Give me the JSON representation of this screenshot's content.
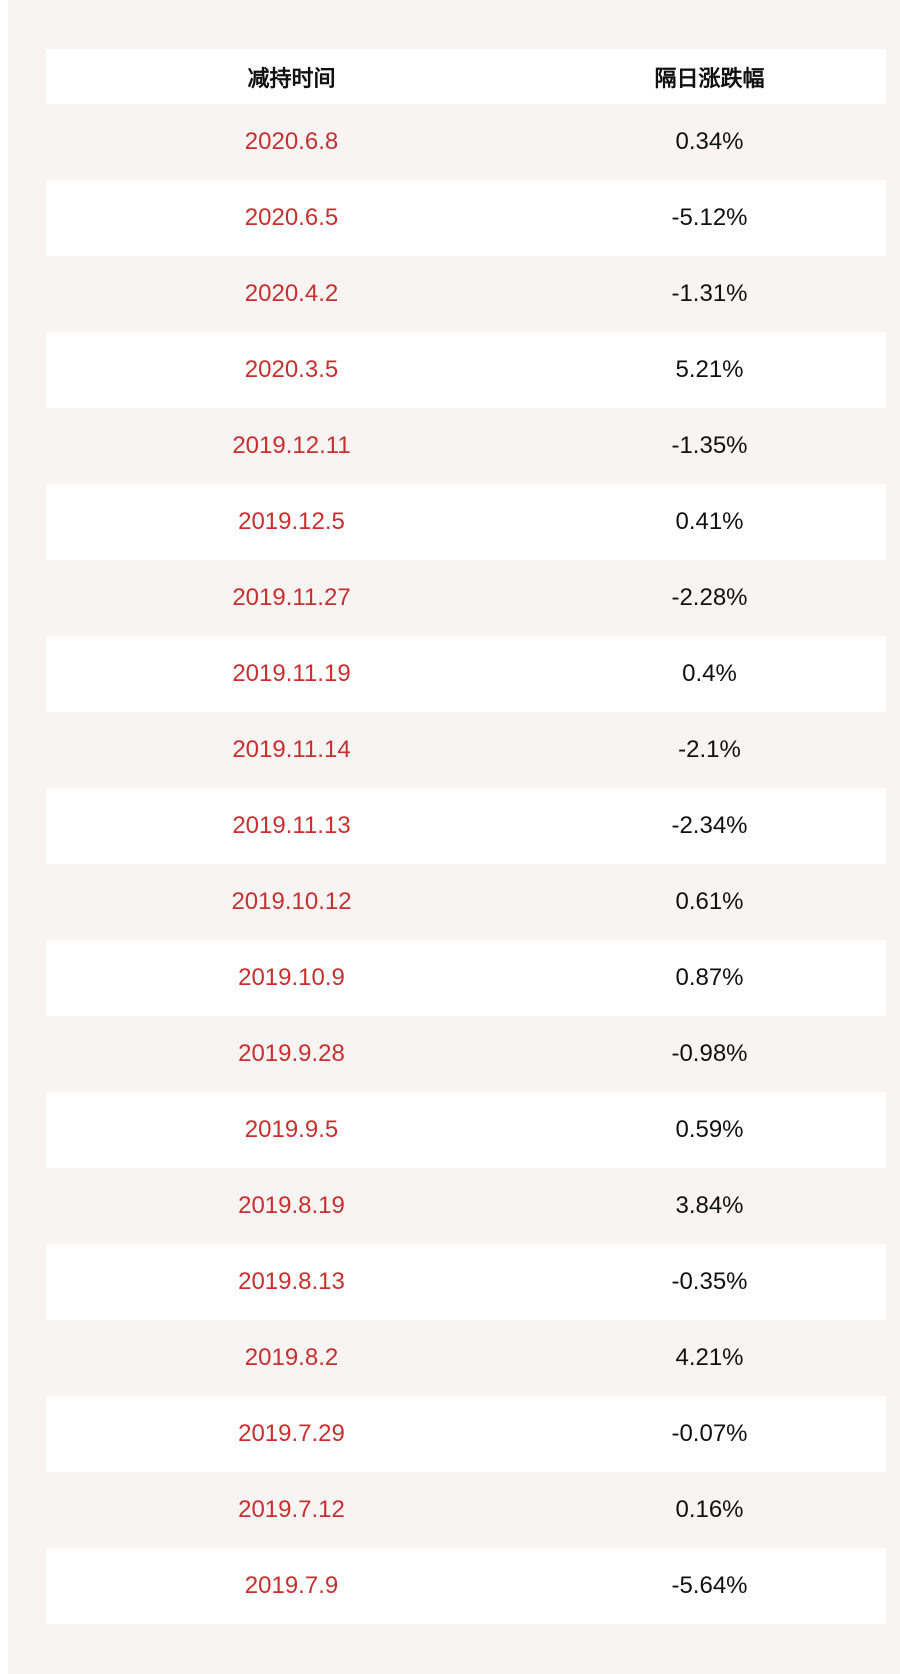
{
  "colors": {
    "date_text": "#c8302f",
    "value_text": "#111111",
    "stripe": "#f8f4f4",
    "row_white": "#ffffff"
  },
  "table": {
    "headers": [
      "减持时间",
      "隔日涨跌幅"
    ],
    "rows": [
      [
        "2020.6.8",
        "0.34%"
      ],
      [
        "2020.6.5",
        "-5.12%"
      ],
      [
        "2020.4.2",
        "-1.31%"
      ],
      [
        "2020.3.5",
        "5.21%"
      ],
      [
        "2019.12.11",
        "-1.35%"
      ],
      [
        "2019.12.5",
        "0.41%"
      ],
      [
        "2019.11.27",
        "-2.28%"
      ],
      [
        "2019.11.19",
        "0.4%"
      ],
      [
        "2019.11.14",
        "-2.1%"
      ],
      [
        "2019.11.13",
        "-2.34%"
      ],
      [
        "2019.10.12",
        "0.61%"
      ],
      [
        "2019.10.9",
        "0.87%"
      ],
      [
        "2019.9.28",
        "-0.98%"
      ],
      [
        "2019.9.5",
        "0.59%"
      ],
      [
        "2019.8.19",
        "3.84%"
      ],
      [
        "2019.8.13",
        "-0.35%"
      ],
      [
        "2019.8.2",
        "4.21%"
      ],
      [
        "2019.7.29",
        "-0.07%"
      ],
      [
        "2019.7.12",
        "0.16%"
      ],
      [
        "2019.7.9",
        "-5.64%"
      ]
    ]
  }
}
